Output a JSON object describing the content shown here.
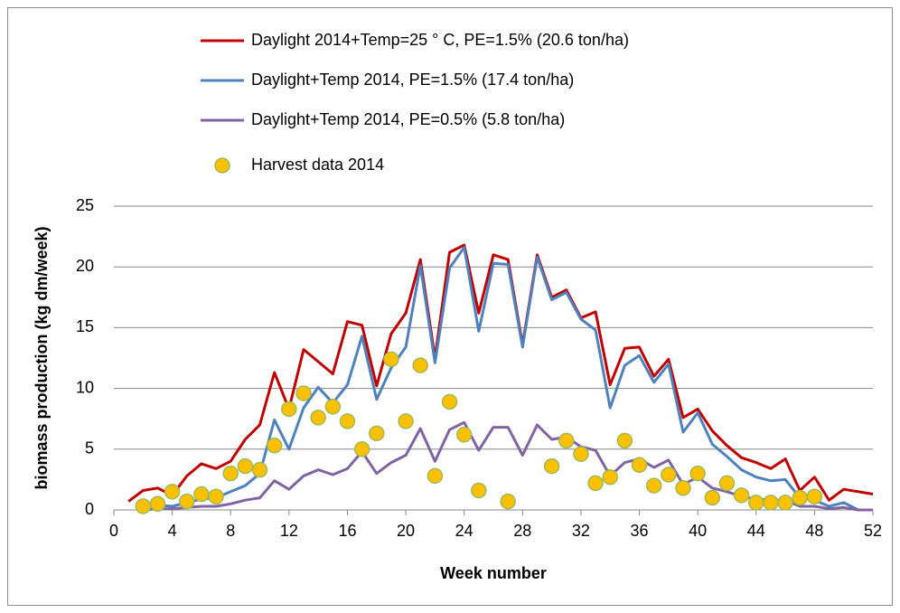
{
  "chart_data": {
    "type": "line",
    "x_label": "Week number",
    "y_label": "biomass production (kg dm/week)",
    "x": [
      1,
      2,
      3,
      4,
      5,
      6,
      7,
      8,
      9,
      10,
      11,
      12,
      13,
      14,
      15,
      16,
      17,
      18,
      19,
      20,
      21,
      22,
      23,
      24,
      25,
      26,
      27,
      28,
      29,
      30,
      31,
      32,
      33,
      34,
      35,
      36,
      37,
      38,
      39,
      40,
      41,
      42,
      43,
      44,
      45,
      46,
      47,
      48,
      49,
      50,
      51,
      52
    ],
    "xlim": [
      0,
      52
    ],
    "xticks": [
      0,
      4,
      8,
      12,
      16,
      20,
      24,
      28,
      32,
      36,
      40,
      44,
      48,
      52
    ],
    "ylim": [
      0,
      25
    ],
    "yticks": [
      0,
      5,
      10,
      15,
      20,
      25
    ],
    "grid": true,
    "series": [
      {
        "name": "Daylight 2014+Temp=25 ° C, PE=1.5% (20.6 ton/ha)",
        "color": "#c00000",
        "type": "line",
        "values": [
          0.7,
          1.6,
          1.8,
          1.2,
          2.8,
          3.8,
          3.4,
          4,
          5.8,
          7,
          11.3,
          8.3,
          13.2,
          12.2,
          11.2,
          15.5,
          15.2,
          10.2,
          14.5,
          16.2,
          20.6,
          12.5,
          21.2,
          21.8,
          16.2,
          21,
          20.6,
          13.6,
          21,
          17.5,
          18.1,
          15.8,
          16.3,
          10.3,
          13.3,
          13.4,
          11,
          12.4,
          7.6,
          8.3,
          6.5,
          5.3,
          4.3,
          3.9,
          3.4,
          4.2,
          1.6,
          2.7,
          0.8,
          1.7,
          1.5,
          1.3
        ]
      },
      {
        "name": "Daylight+Temp 2014, PE=1.5% (17.4 ton/ha)",
        "color": "#4f81bd",
        "type": "line",
        "values": [
          null,
          0.2,
          0.4,
          0.3,
          0.6,
          0.9,
          1,
          1.5,
          2,
          3,
          7.4,
          5,
          8.4,
          10.1,
          8.8,
          10.3,
          14.3,
          9.1,
          11.7,
          13.4,
          20.1,
          12.1,
          19.9,
          21.6,
          14.7,
          20.3,
          20.2,
          13.4,
          20.8,
          17.3,
          17.9,
          15.7,
          14.8,
          8.4,
          11.9,
          12.7,
          10.5,
          12,
          6.4,
          8,
          5.4,
          4.4,
          3.3,
          2.7,
          2.4,
          2.5,
          1,
          0.8,
          0.3,
          0.6,
          0,
          0
        ]
      },
      {
        "name": "Daylight+Temp 2014, PE=0.5% (5.8 ton/ha)",
        "color": "#8064a2",
        "type": "line",
        "values": [
          null,
          0,
          0.1,
          0.1,
          0.2,
          0.3,
          0.3,
          0.5,
          0.8,
          1,
          2.4,
          1.7,
          2.8,
          3.3,
          2.9,
          3.4,
          4.8,
          3,
          3.9,
          4.5,
          6.7,
          4,
          6.6,
          7.2,
          4.9,
          6.8,
          6.8,
          4.5,
          7,
          5.8,
          6,
          5.2,
          4.9,
          2.8,
          3.9,
          4.2,
          3.5,
          4.1,
          2.1,
          2.7,
          1.8,
          1.5,
          1.1,
          0.9,
          0.8,
          0.8,
          0.3,
          0.3,
          0.1,
          0.2,
          0,
          0
        ]
      },
      {
        "name": "Harvest data 2014",
        "color": "#ffc000",
        "type": "scatter",
        "x": [
          2,
          3,
          4,
          5,
          6,
          7,
          8,
          9,
          10,
          11,
          12,
          13,
          14,
          15,
          16,
          17,
          18,
          19,
          20,
          21,
          22,
          23,
          24,
          25,
          27,
          30,
          31,
          32,
          33,
          34,
          35,
          36,
          37,
          38,
          39,
          40,
          41,
          42,
          43,
          44,
          45,
          46,
          47,
          48
        ],
        "values": [
          0.3,
          0.5,
          1.5,
          0.7,
          1.3,
          1.1,
          3,
          3.6,
          3.3,
          5.3,
          8.3,
          9.6,
          7.6,
          8.5,
          7.3,
          5,
          6.3,
          12.4,
          7.3,
          11.9,
          2.8,
          8.9,
          6.2,
          1.6,
          0.7,
          3.6,
          5.7,
          4.6,
          2.2,
          2.7,
          5.7,
          3.7,
          2,
          2.9,
          1.8,
          3,
          1,
          2.2,
          1.2,
          0.6,
          0.6,
          0.6,
          1,
          1.1
        ]
      }
    ]
  }
}
